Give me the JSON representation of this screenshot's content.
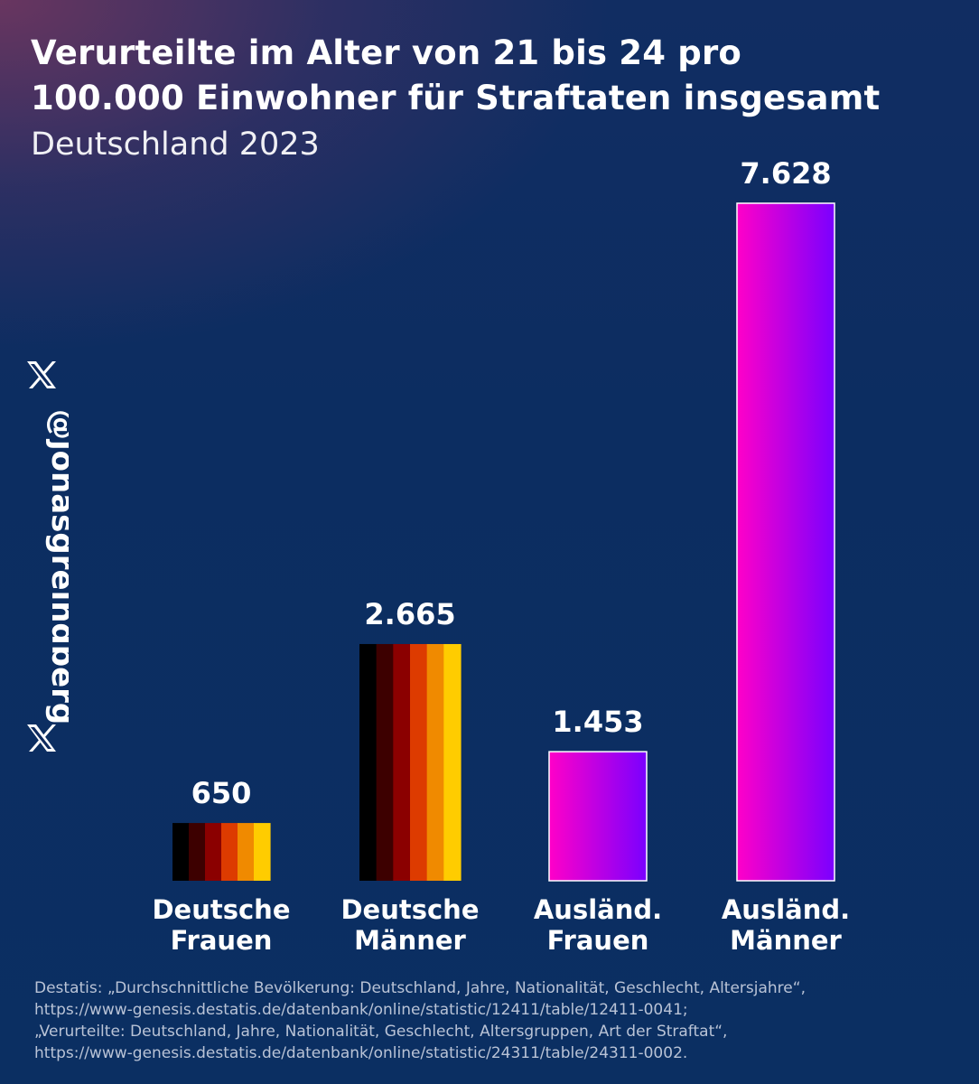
{
  "title_line1": "Verurteilte im Alter von 21 bis 24 pro",
  "title_line2": "100.000 Einwohner für Straftaten insgesamt",
  "subtitle": "Deutschland 2023",
  "watermark": {
    "handle": "@jonasgreindberg",
    "icon": "x-logo-icon"
  },
  "colors": {
    "german_flag_stripes": [
      "#000000",
      "#3d0000",
      "#8b0000",
      "#dd3b00",
      "#f08a00",
      "#ffcc00"
    ],
    "foreign_gradient": [
      "#ff00c8",
      "#7a00ff"
    ]
  },
  "chart_data": {
    "type": "bar",
    "title": "Verurteilte im Alter von 21 bis 24 pro 100.000 Einwohner für Straftaten insgesamt",
    "subtitle": "Deutschland 2023",
    "categories": [
      [
        "Deutsche",
        "Frauen"
      ],
      [
        "Deutsche",
        "Männer"
      ],
      [
        "Ausländ.",
        "Frauen"
      ],
      [
        "Ausländ.",
        "Männer"
      ]
    ],
    "values": [
      650,
      2665,
      1453,
      7628
    ],
    "value_labels": [
      "650",
      "2.665",
      "1.453",
      "7.628"
    ],
    "styles": [
      "flag",
      "flag",
      "gradient",
      "gradient"
    ],
    "ylim": [
      0,
      7628
    ],
    "grid": false,
    "legend": "none"
  },
  "source": {
    "lines": [
      "Destatis: „Durchschnittliche Bevölkerung: Deutschland, Jahre, Nationalität, Geschlecht, Altersjahre“,",
      "https://www-genesis.destatis.de/datenbank/online/statistic/12411/table/12411-0041;",
      "„Verurteilte: Deutschland, Jahre, Nationalität, Geschlecht, Altersgruppen, Art der Straftat“,",
      "https://www-genesis.destatis.de/datenbank/online/statistic/24311/table/24311-0002."
    ]
  }
}
